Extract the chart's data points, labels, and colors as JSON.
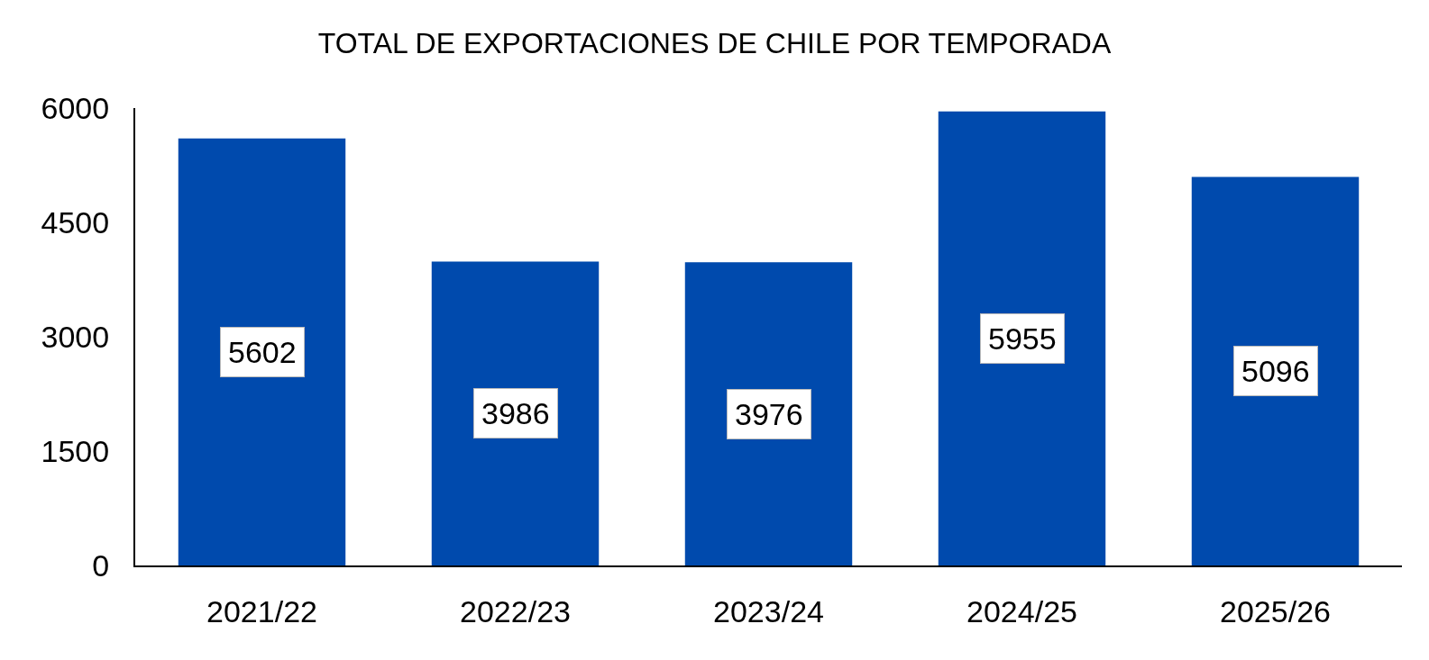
{
  "chart_data": {
    "type": "bar",
    "title": "TOTAL DE EXPORTACIONES DE CHILE POR TEMPORADA",
    "categories": [
      "2021/22",
      "2022/23",
      "2023/24",
      "2024/25",
      "2025/26"
    ],
    "values": [
      5602,
      3986,
      3976,
      5955,
      5096
    ],
    "color": "#004aad",
    "ylim": [
      0,
      6000
    ],
    "yticks": [
      0,
      1500,
      3000,
      4500,
      6000
    ],
    "data_labels": true
  }
}
